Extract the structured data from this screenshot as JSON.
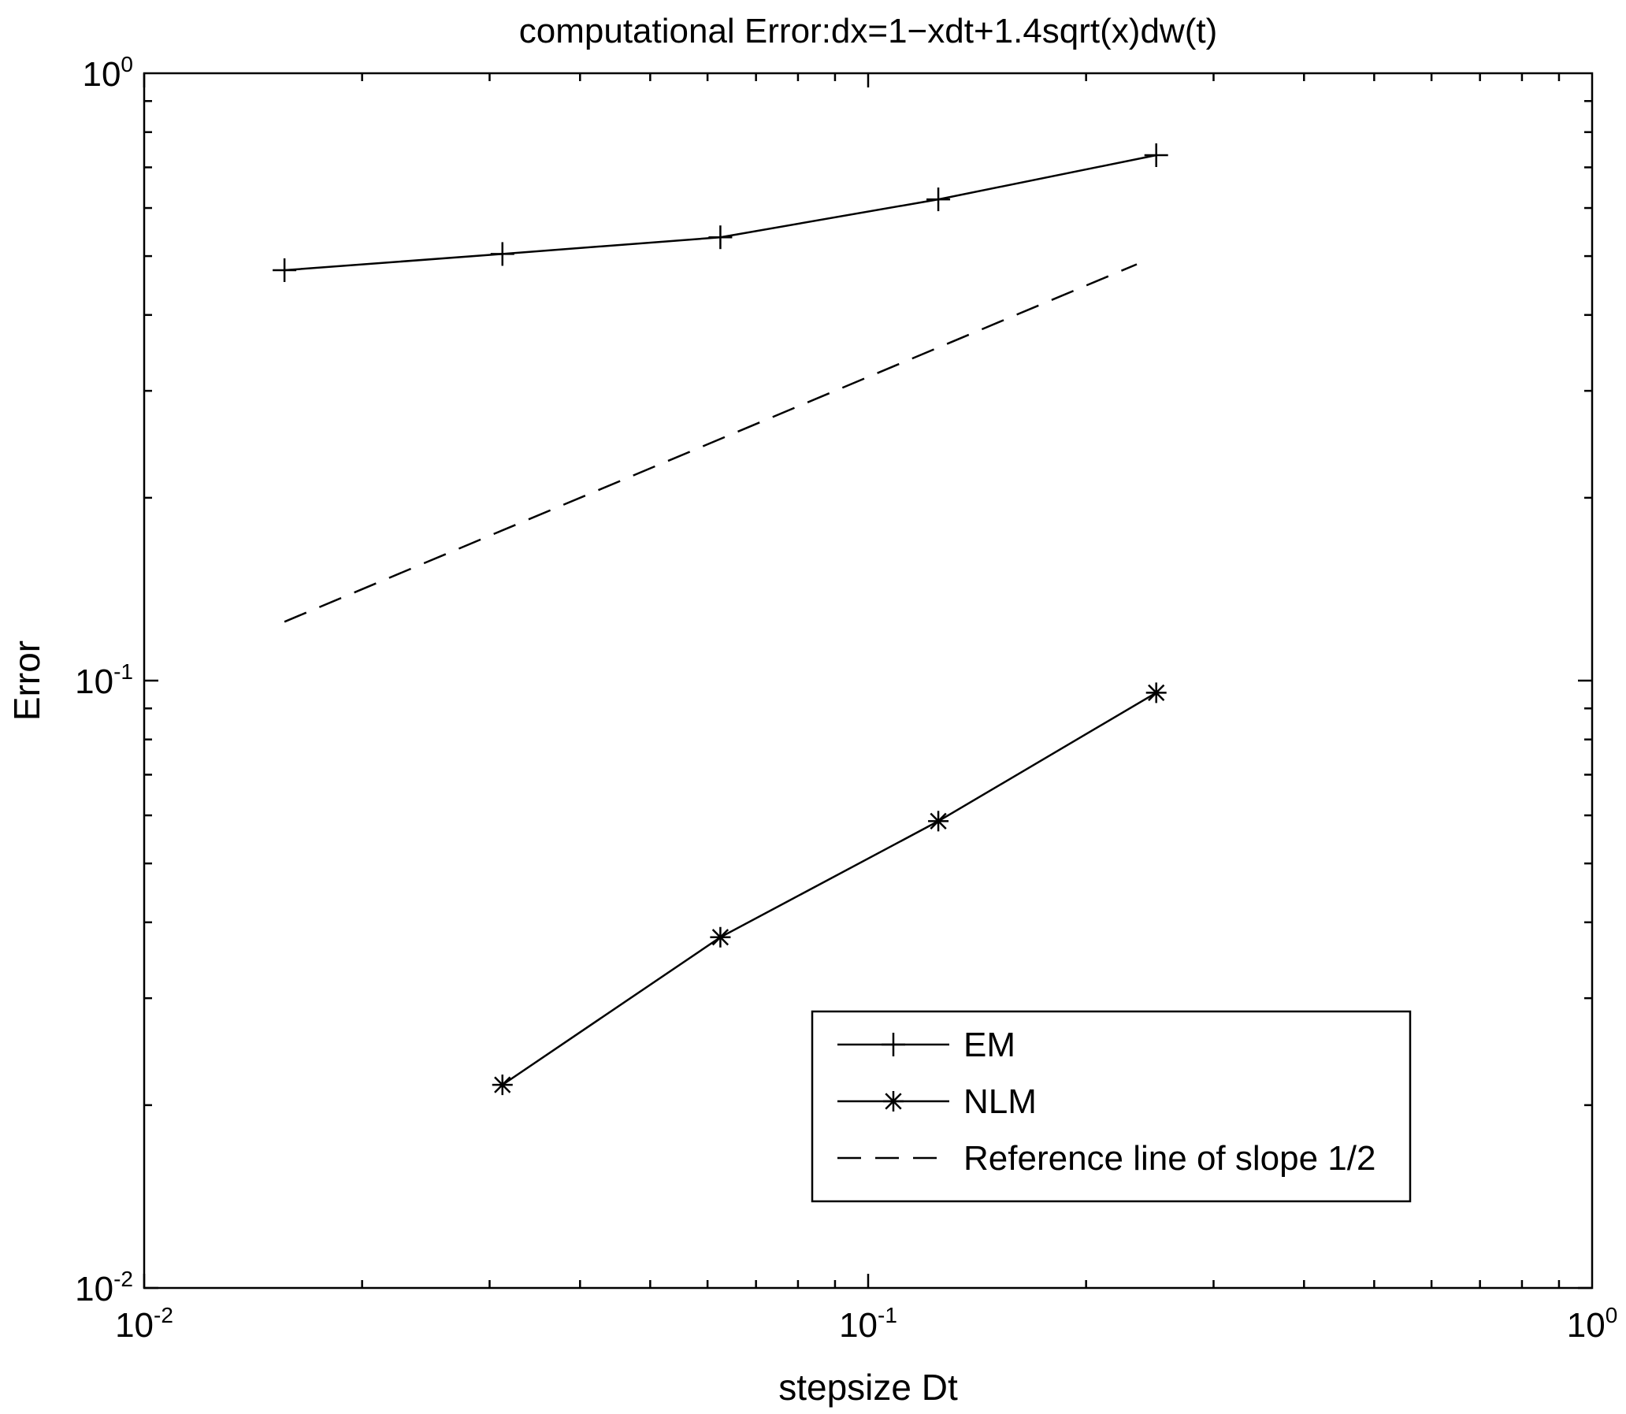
{
  "chart_data": {
    "type": "line",
    "title": "computational Error:dx=1−xdt+1.4sqrt(x)dw(t)",
    "xlabel": "stepsize Dt",
    "ylabel": "Error",
    "xscale": "log",
    "yscale": "log",
    "xlim": [
      0.01,
      1
    ],
    "ylim": [
      0.01,
      1
    ],
    "x_ticks": [
      {
        "base": "10",
        "exp": "-2",
        "value": 0.01
      },
      {
        "base": "10",
        "exp": "-1",
        "value": 0.1
      },
      {
        "base": "10",
        "exp": "0",
        "value": 1
      }
    ],
    "y_ticks": [
      {
        "base": "10",
        "exp": "-2",
        "value": 0.01
      },
      {
        "base": "10",
        "exp": "-1",
        "value": 0.1
      },
      {
        "base": "10",
        "exp": "0",
        "value": 1
      }
    ],
    "grid": false,
    "legend_position": "bottom-right",
    "series": [
      {
        "name": "EM",
        "marker": "plus",
        "line": "solid",
        "x": [
          0.015625,
          0.03125,
          0.0625,
          0.125,
          0.25
        ],
        "y": [
          0.474,
          0.504,
          0.537,
          0.62,
          0.733
        ]
      },
      {
        "name": "NLM",
        "marker": "asterisk",
        "line": "solid",
        "x": [
          0.03125,
          0.0625,
          0.125,
          0.25
        ],
        "y": [
          0.0216,
          0.0378,
          0.0587,
          0.0955
        ]
      },
      {
        "name": "Reference line of slope 1/2",
        "marker": "none",
        "line": "dashed",
        "x": [
          0.015625,
          0.235
        ],
        "y": [
          0.125,
          0.4847
        ]
      }
    ]
  }
}
